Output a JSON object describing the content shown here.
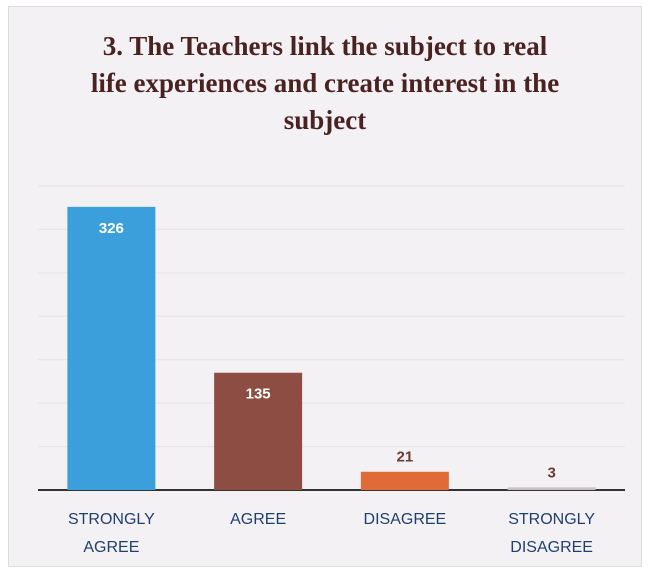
{
  "chart_data": {
    "type": "bar",
    "title": "3. The Teachers link the subject to real life experiences and create interest in the subject",
    "categories": [
      "STRONGLY AGREE",
      "AGREE",
      "DISAGREE",
      "STRONGLY DISAGREE"
    ],
    "values": [
      326,
      135,
      21,
      3
    ],
    "colors": [
      "#3b9fdc",
      "#8e4d42",
      "#e06a38",
      "#c9c0c8"
    ],
    "ylim": [
      0,
      350
    ],
    "yticks": [
      0,
      50,
      100,
      150,
      200,
      250,
      300,
      350
    ],
    "grid": true
  }
}
